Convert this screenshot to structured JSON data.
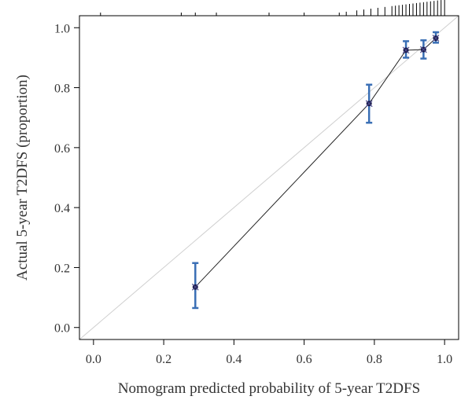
{
  "chart_data": {
    "type": "scatter",
    "title": "",
    "xlabel": "Nomogram predicted probability of 5-year T2DFS",
    "ylabel": "Actual 5-year T2DFS (proportion)",
    "xlim": [
      -0.04,
      1.04
    ],
    "ylim": [
      -0.04,
      1.04
    ],
    "x_ticks": [
      "0.0",
      "0.2",
      "0.4",
      "0.6",
      "0.8",
      "1.0"
    ],
    "y_ticks": [
      "0.0",
      "0.2",
      "0.4",
      "0.6",
      "0.8",
      "1.0"
    ],
    "grid": false,
    "legend": "none",
    "reference_line": {
      "from": [
        -0.04,
        -0.04
      ],
      "to": [
        1.04,
        1.04
      ],
      "color": "#cfcfcf"
    },
    "series": [
      {
        "points": [
          {
            "x": 0.29,
            "y": 0.135,
            "low": 0.065,
            "high": 0.215
          },
          {
            "x": 0.785,
            "y": 0.747,
            "low": 0.683,
            "high": 0.81
          },
          {
            "x": 0.89,
            "y": 0.925,
            "low": 0.9,
            "high": 0.955
          },
          {
            "x": 0.94,
            "y": 0.927,
            "low": 0.897,
            "high": 0.958
          },
          {
            "x": 0.975,
            "y": 0.965,
            "low": 0.95,
            "high": 0.985
          }
        ],
        "line_color": "#222222",
        "errorbar_color": "#3a6fb5",
        "marker_color": "#1a1a4a"
      }
    ],
    "rug_ticks_x": [
      0.02,
      0.25,
      0.29,
      0.35,
      0.5,
      0.6,
      0.7,
      0.72,
      0.75,
      0.77,
      0.79,
      0.81,
      0.83,
      0.85,
      0.86,
      0.87,
      0.88,
      0.89,
      0.9,
      0.91,
      0.92,
      0.93,
      0.94,
      0.95,
      0.96,
      0.97,
      0.98,
      0.99,
      1.0
    ]
  }
}
